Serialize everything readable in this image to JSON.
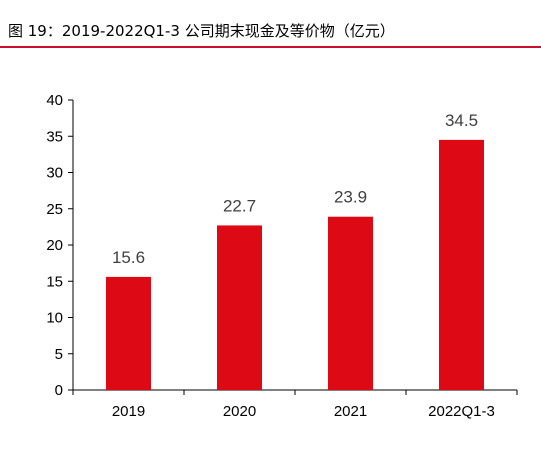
{
  "header": {
    "figure_title": "图 19：2019-2022Q1-3 公司期末现金及等价物（亿元）"
  },
  "colors": {
    "accent": "#c8102e",
    "bar": "#dd0914",
    "axis": "#000000",
    "data_label": "#404040"
  },
  "chart_data": {
    "type": "bar",
    "title": "",
    "xlabel": "",
    "ylabel": "",
    "categories": [
      "2019",
      "2020",
      "2021",
      "2022Q1-3"
    ],
    "values": [
      15.6,
      22.7,
      23.9,
      34.5
    ],
    "ylim": [
      0,
      40
    ],
    "yticks": [
      0,
      5,
      10,
      15,
      20,
      25,
      30,
      35,
      40
    ],
    "grid": false,
    "legend": "none"
  }
}
